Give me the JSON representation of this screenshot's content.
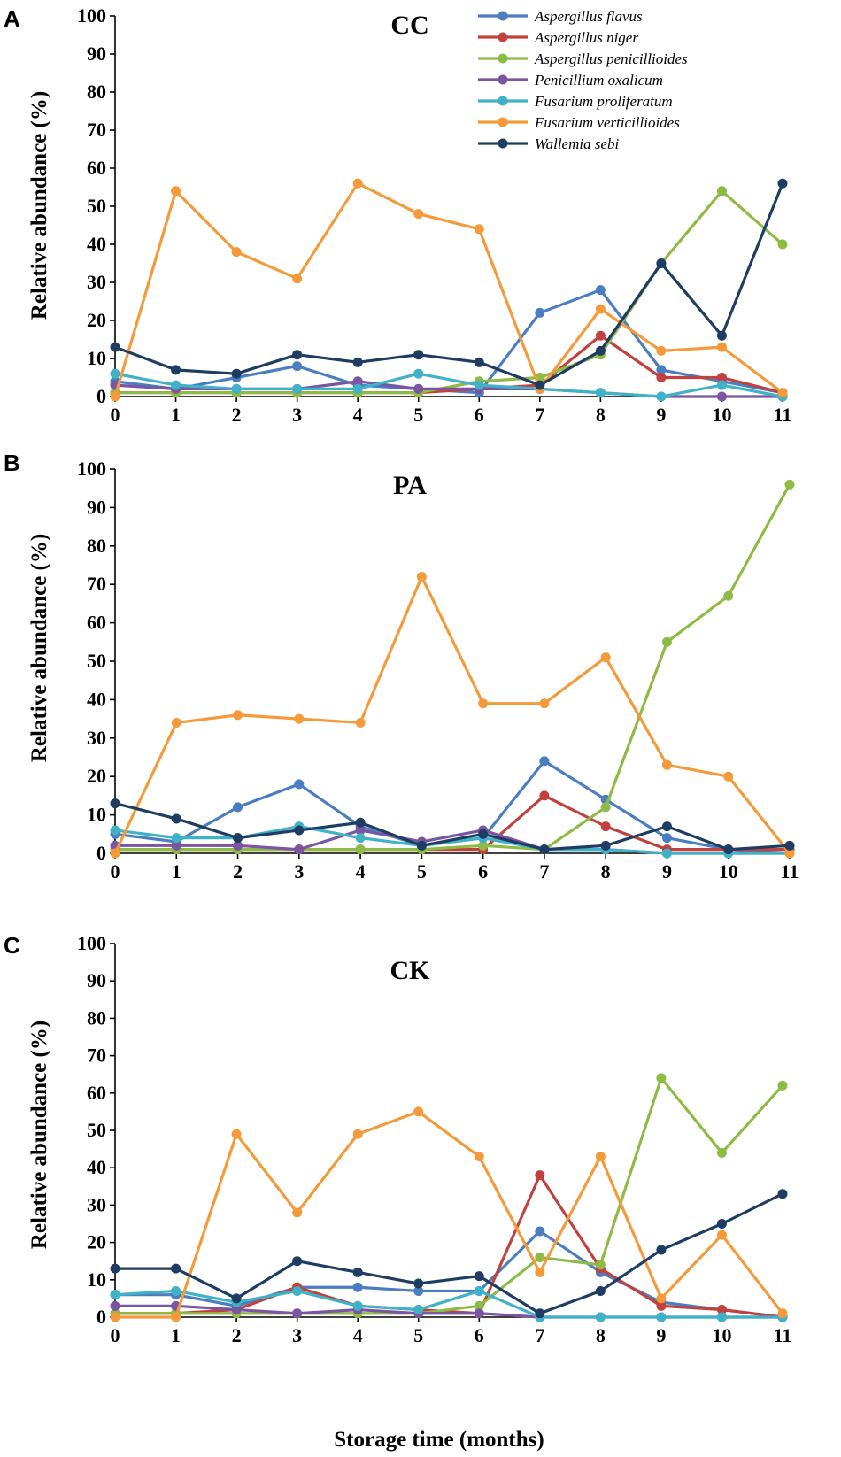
{
  "colors": {
    "Aspergillus flavus": "#4a7ec1",
    "Aspergillus niger": "#c0413e",
    "Aspergillus penicillioides": "#8dbb45",
    "Penicillium oxalicum": "#7a55a2",
    "Fusarium proliferatum": "#3fb2c7",
    "Fusarium verticillioides": "#f59a3a",
    "Wallemia sebi": "#1f3d63"
  },
  "legend": [
    "Aspergillus flavus",
    "Aspergillus niger",
    "Aspergillus penicillioides",
    "Penicillium oxalicum",
    "Fusarium proliferatum",
    "Fusarium verticillioides",
    "Wallemia sebi"
  ],
  "xlabel": "Storage time  (months)",
  "chart_data": [
    {
      "type": "line",
      "panel": "A",
      "title": "CC",
      "ylabel": "Relative abundance (%)",
      "ylim": [
        0,
        100
      ],
      "yticks": [
        0,
        10,
        20,
        30,
        40,
        50,
        60,
        70,
        80,
        90,
        100
      ],
      "x": [
        0,
        1,
        2,
        3,
        4,
        5,
        6,
        7,
        8,
        9,
        10,
        11
      ],
      "legend_position": "top-right",
      "series": [
        {
          "name": "Aspergillus flavus",
          "values": [
            4,
            2,
            5,
            8,
            3,
            2,
            1,
            22,
            28,
            7,
            4,
            1
          ]
        },
        {
          "name": "Aspergillus niger",
          "values": [
            1,
            1,
            1,
            1,
            1,
            1,
            2,
            3,
            16,
            5,
            5,
            1
          ]
        },
        {
          "name": "Aspergillus penicillioides",
          "values": [
            1,
            1,
            1,
            1,
            1,
            1,
            4,
            5,
            11,
            35,
            54,
            40
          ]
        },
        {
          "name": "Penicillium oxalicum",
          "values": [
            3,
            2,
            2,
            2,
            4,
            2,
            2,
            2,
            1,
            0,
            0,
            0
          ]
        },
        {
          "name": "Fusarium proliferatum",
          "values": [
            6,
            3,
            2,
            2,
            2,
            6,
            3,
            2,
            1,
            0,
            3,
            0
          ]
        },
        {
          "name": "Fusarium verticillioides",
          "values": [
            0,
            54,
            38,
            31,
            56,
            48,
            44,
            2,
            23,
            12,
            13,
            1
          ]
        },
        {
          "name": "Wallemia sebi",
          "values": [
            13,
            7,
            6,
            11,
            9,
            11,
            9,
            3,
            12,
            35,
            16,
            56
          ]
        }
      ]
    },
    {
      "type": "line",
      "panel": "B",
      "title": "PA",
      "ylabel": "Relative abundance (%)",
      "ylim": [
        0,
        100
      ],
      "yticks": [
        0,
        10,
        20,
        30,
        40,
        50,
        60,
        70,
        80,
        90,
        100
      ],
      "x": [
        0,
        1,
        2,
        3,
        4,
        5,
        6,
        7,
        8,
        9,
        10,
        11
      ],
      "series": [
        {
          "name": "Aspergillus flavus",
          "values": [
            5,
            3,
            12,
            18,
            7,
            2,
            4,
            24,
            14,
            4,
            1,
            0
          ]
        },
        {
          "name": "Aspergillus niger",
          "values": [
            1,
            1,
            1,
            1,
            1,
            1,
            1,
            15,
            7,
            1,
            1,
            1
          ]
        },
        {
          "name": "Aspergillus penicillioides",
          "values": [
            1,
            1,
            1,
            1,
            1,
            1,
            2,
            1,
            12,
            55,
            67,
            96
          ]
        },
        {
          "name": "Penicillium oxalicum",
          "values": [
            2,
            2,
            2,
            1,
            6,
            3,
            6,
            1,
            1,
            0,
            0,
            0
          ]
        },
        {
          "name": "Fusarium proliferatum",
          "values": [
            6,
            4,
            4,
            7,
            4,
            2,
            4,
            1,
            1,
            0,
            0,
            0
          ]
        },
        {
          "name": "Fusarium verticillioides",
          "values": [
            0,
            34,
            36,
            35,
            34,
            72,
            39,
            39,
            51,
            23,
            20,
            0
          ]
        },
        {
          "name": "Wallemia sebi",
          "values": [
            13,
            9,
            4,
            6,
            8,
            2,
            5,
            1,
            2,
            7,
            1,
            2
          ]
        }
      ]
    },
    {
      "type": "line",
      "panel": "C",
      "title": "CK",
      "ylabel": "Relative abundance (%)",
      "ylim": [
        0,
        100
      ],
      "yticks": [
        0,
        10,
        20,
        30,
        40,
        50,
        60,
        70,
        80,
        90,
        100
      ],
      "x": [
        0,
        1,
        2,
        3,
        4,
        5,
        6,
        7,
        8,
        9,
        10,
        11
      ],
      "series": [
        {
          "name": "Aspergillus flavus",
          "values": [
            6,
            6,
            3,
            8,
            8,
            7,
            7,
            23,
            12,
            4,
            2,
            0
          ]
        },
        {
          "name": "Aspergillus niger",
          "values": [
            1,
            1,
            2,
            8,
            3,
            2,
            1,
            38,
            13,
            3,
            2,
            0
          ]
        },
        {
          "name": "Aspergillus penicillioides",
          "values": [
            1,
            1,
            1,
            1,
            1,
            1,
            3,
            16,
            14,
            64,
            44,
            62
          ]
        },
        {
          "name": "Penicillium oxalicum",
          "values": [
            3,
            3,
            2,
            1,
            2,
            1,
            1,
            0,
            0,
            0,
            0,
            0
          ]
        },
        {
          "name": "Fusarium proliferatum",
          "values": [
            6,
            7,
            4,
            7,
            3,
            2,
            7,
            0,
            0,
            0,
            0,
            0
          ]
        },
        {
          "name": "Fusarium verticillioides",
          "values": [
            0,
            0,
            49,
            28,
            49,
            55,
            43,
            12,
            43,
            5,
            22,
            1
          ]
        },
        {
          "name": "Wallemia sebi",
          "values": [
            13,
            13,
            5,
            15,
            12,
            9,
            11,
            1,
            7,
            18,
            25,
            33
          ]
        }
      ]
    }
  ]
}
